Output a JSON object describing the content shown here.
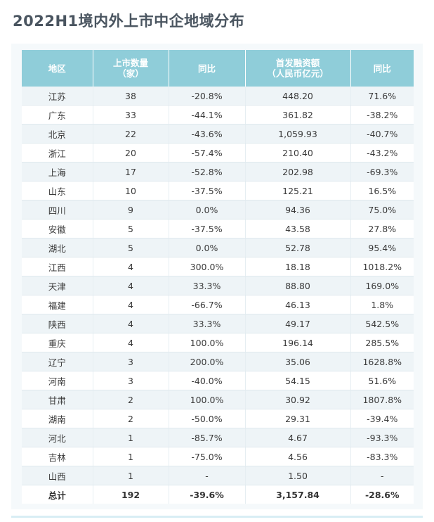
{
  "title": "2022H1境内外上市中企地域分布",
  "table": {
    "headers": [
      [
        "地区"
      ],
      [
        "上市数量",
        "（家）"
      ],
      [
        "同比"
      ],
      [
        "首发融资额",
        "（人民币亿元）"
      ],
      [
        "同比"
      ]
    ],
    "rows": [
      [
        "江苏",
        "38",
        "-20.8%",
        "448.20",
        "71.6%"
      ],
      [
        "广东",
        "33",
        "-44.1%",
        "361.82",
        "-38.2%"
      ],
      [
        "北京",
        "22",
        "-43.6%",
        "1,059.93",
        "-40.7%"
      ],
      [
        "浙江",
        "20",
        "-57.4%",
        "210.40",
        "-43.2%"
      ],
      [
        "上海",
        "17",
        "-52.8%",
        "202.98",
        "-69.3%"
      ],
      [
        "山东",
        "10",
        "-37.5%",
        "125.21",
        "16.5%"
      ],
      [
        "四川",
        "9",
        "0.0%",
        "94.36",
        "75.0%"
      ],
      [
        "安徽",
        "5",
        "-37.5%",
        "43.58",
        "27.8%"
      ],
      [
        "湖北",
        "5",
        "0.0%",
        "52.78",
        "95.4%"
      ],
      [
        "江西",
        "4",
        "300.0%",
        "18.18",
        "1018.2%"
      ],
      [
        "天津",
        "4",
        "33.3%",
        "88.80",
        "169.0%"
      ],
      [
        "福建",
        "4",
        "-66.7%",
        "46.13",
        "1.8%"
      ],
      [
        "陕西",
        "4",
        "33.3%",
        "49.17",
        "542.5%"
      ],
      [
        "重庆",
        "4",
        "100.0%",
        "196.14",
        "285.5%"
      ],
      [
        "辽宁",
        "3",
        "200.0%",
        "35.06",
        "1628.8%"
      ],
      [
        "河南",
        "3",
        "-40.0%",
        "54.15",
        "51.6%"
      ],
      [
        "甘肃",
        "2",
        "100.0%",
        "30.92",
        "1807.8%"
      ],
      [
        "湖南",
        "2",
        "-50.0%",
        "29.31",
        "-39.4%"
      ],
      [
        "河北",
        "1",
        "-85.7%",
        "4.67",
        "-93.3%"
      ],
      [
        "吉林",
        "1",
        "-75.0%",
        "4.56",
        "-83.3%"
      ],
      [
        "山西",
        "1",
        "-",
        "1.50",
        "-"
      ]
    ],
    "total": [
      "总计",
      "192",
      "-39.6%",
      "3,157.84",
      "-28.6%"
    ]
  }
}
